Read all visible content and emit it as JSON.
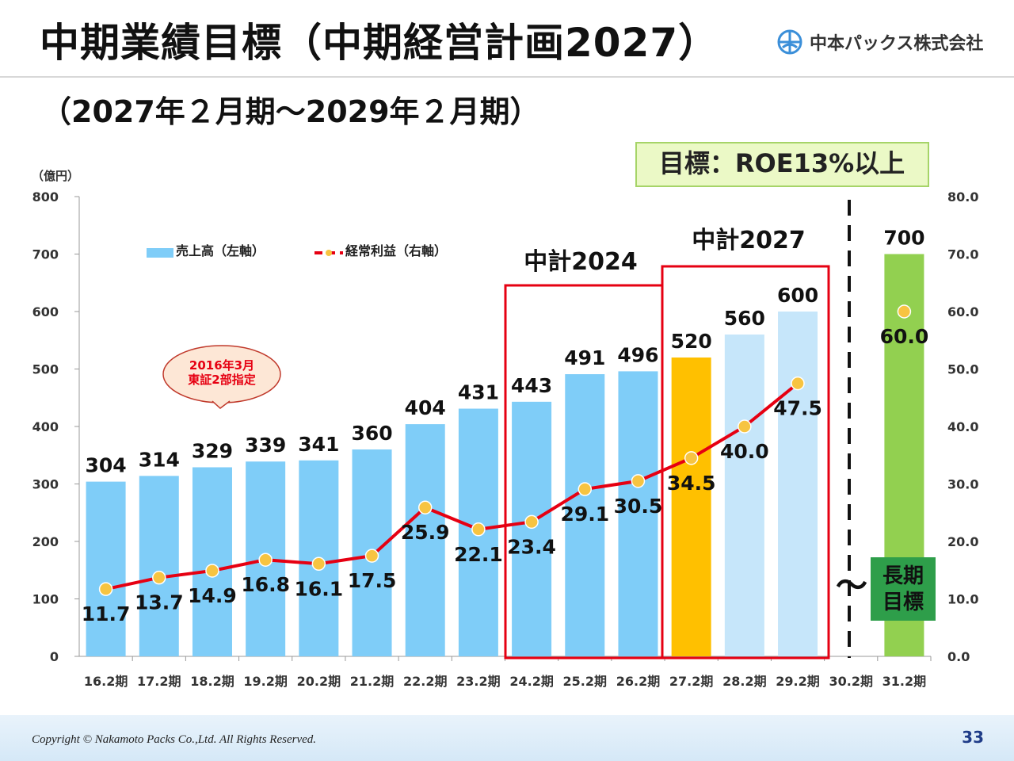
{
  "header": {
    "title": "中期業績目標（中期経営計画2027）",
    "company": "中本パックス株式会社",
    "subtitle": "（2027年２月期～2029年２月期）"
  },
  "goal_box": "目標：ROE13%以上",
  "callout": {
    "line1": "2016年3月",
    "line2": "東証2部指定"
  },
  "plan_labels": {
    "p2024": "中計2024",
    "p2027": "中計2027"
  },
  "long_term": {
    "line1": "長期",
    "line2": "目標",
    "tilde": "～"
  },
  "footer": {
    "copyright": "Copyright © Nakamoto Packs Co.,Ltd. All Rights Reserved.",
    "page": "33"
  },
  "chart_data": {
    "type": "bar+line",
    "categories": [
      "16.2期",
      "17.2期",
      "18.2期",
      "19.2期",
      "20.2期",
      "21.2期",
      "22.2期",
      "23.2期",
      "24.2期",
      "25.2期",
      "26.2期",
      "27.2期",
      "28.2期",
      "29.2期",
      "30.2期",
      "31.2期"
    ],
    "left_unit": "（億円）",
    "left_ylim": [
      0,
      800
    ],
    "left_ticks": [
      "0",
      "100",
      "200",
      "300",
      "400",
      "500",
      "600",
      "700",
      "800"
    ],
    "right_ylim": [
      0,
      80
    ],
    "right_ticks": [
      "0.0",
      "10.0",
      "20.0",
      "30.0",
      "40.0",
      "50.0",
      "60.0",
      "70.0",
      "80.0"
    ],
    "legend": {
      "bar": "売上高（左軸）",
      "line": "経常利益（右軸）",
      "placement": "top-left"
    },
    "series": [
      {
        "name": "売上高（左軸）",
        "type": "bar",
        "axis": "left",
        "values": [
          304,
          314,
          329,
          339,
          341,
          360,
          404,
          431,
          443,
          491,
          496,
          520,
          560,
          600,
          null,
          700
        ],
        "colors": [
          "#7fcdf8",
          "#7fcdf8",
          "#7fcdf8",
          "#7fcdf8",
          "#7fcdf8",
          "#7fcdf8",
          "#7fcdf8",
          "#7fcdf8",
          "#7fcdf8",
          "#7fcdf8",
          "#7fcdf8",
          "#ffc000",
          "#c6e6fa",
          "#c6e6fa",
          null,
          "#92d050"
        ]
      },
      {
        "name": "経常利益（右軸）",
        "type": "line",
        "axis": "right",
        "values": [
          11.7,
          13.7,
          14.9,
          16.8,
          16.1,
          17.5,
          25.9,
          22.1,
          23.4,
          29.1,
          30.5,
          34.5,
          40.0,
          47.5,
          null,
          60.0
        ],
        "labels": [
          "11.7",
          "13.7",
          "14.9",
          "16.8",
          "16.1",
          "17.5",
          "25.9",
          "22.1",
          "23.4",
          "29.1",
          "30.5",
          "34.5",
          "40.0",
          "47.5",
          null,
          "60.0"
        ],
        "line_color": "#e60012",
        "marker_color": "#f7c441"
      }
    ]
  }
}
